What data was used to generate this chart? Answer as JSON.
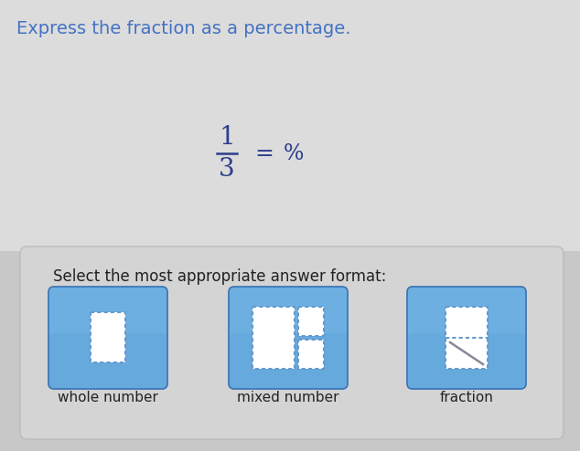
{
  "title": "Express the fraction as a percentage.",
  "title_color": "#4472c4",
  "title_fontsize": 14,
  "bg_color": "#c8c8c8",
  "bg_color_upper": "#e0e0e0",
  "fraction_numerator": "1",
  "fraction_denominator": "3",
  "fraction_color": "#2c3e8c",
  "equals_sign": "=",
  "percent_sign": "%",
  "select_text": "Select the most appropriate answer format:",
  "select_color": "#222222",
  "select_fontsize": 12,
  "button_bg_top": "#7ab0e0",
  "button_bg_bot": "#4a80c0",
  "button_label_color": "#222222",
  "labels": [
    "whole number",
    "mixed number",
    "fraction"
  ],
  "panel_bg": "#d8d8d8",
  "panel_edge": "#bbbbbb",
  "icon_dash_color": "#6699cc",
  "icon_bg": "#ffffff"
}
